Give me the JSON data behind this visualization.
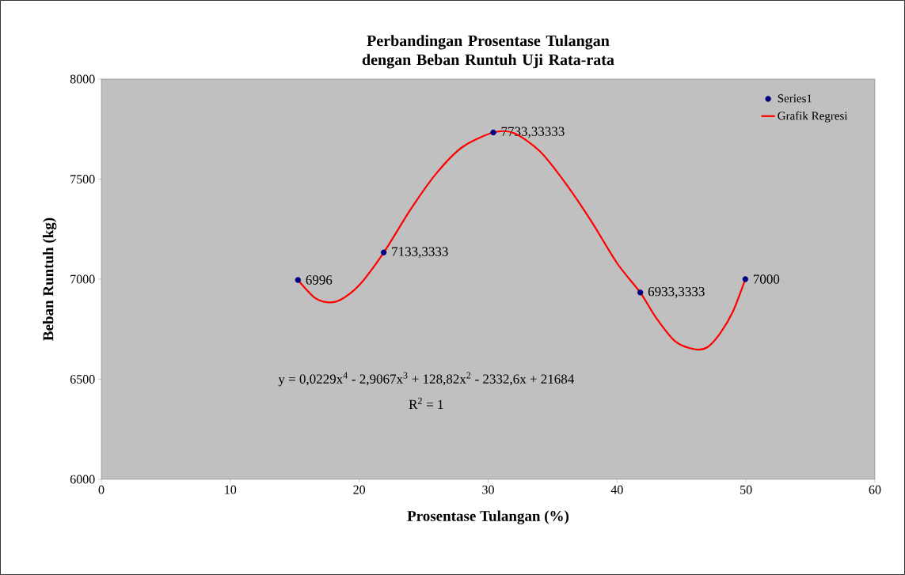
{
  "chart_data": {
    "type": "scatter",
    "title": "Perbandingan Prosentase Tulangan dengan Beban Runtuh Uji Rata-rata",
    "xlabel": "Prosentase Tulangan (%)",
    "ylabel": "Beban Runtuh (kg)",
    "xlim": [
      0,
      60
    ],
    "ylim": [
      6000,
      8000
    ],
    "xticks": [
      0,
      10,
      20,
      30,
      40,
      50,
      60
    ],
    "yticks": [
      6000,
      6500,
      7000,
      7500,
      8000
    ],
    "grid": false,
    "legend": "top right",
    "annotations": [
      "y = 0,0229x$^{4}$ - 2,9067x$^{3}$ + 128,82x$^{2}$ - 2332,6x + 21684",
      "R$^{2}$ = 1"
    ],
    "series": [
      {
        "name": "Series1",
        "color": "#000080",
        "marker": "circle",
        "x": [
          15.25,
          21.9,
          30.4,
          41.8,
          49.95
        ],
        "values": [
          6996,
          7133.3333,
          7733.33333,
          6933.3333,
          7000
        ],
        "value_labels": [
          "6996",
          "7133,3333",
          "7733,33333",
          "6933,3333",
          "7000"
        ]
      },
      {
        "name": "Grafik Regresi",
        "type": "line",
        "color": "#ff0000",
        "marker": "none",
        "line_style": "solid",
        "x": [
          15.25,
          16.5,
          17.5,
          18.5,
          20,
          21.9,
          24,
          26,
          28,
          30.4,
          32,
          34,
          36,
          38,
          40,
          41.8,
          43,
          44.5,
          46,
          47,
          48,
          49,
          49.95
        ],
        "values": [
          6996,
          6910,
          6885,
          6895,
          6970,
          7133,
          7350,
          7530,
          7660,
          7733,
          7730,
          7640,
          7480,
          7290,
          7080,
          6933,
          6810,
          6690,
          6650,
          6660,
          6730,
          6840,
          7000
        ]
      }
    ]
  }
}
